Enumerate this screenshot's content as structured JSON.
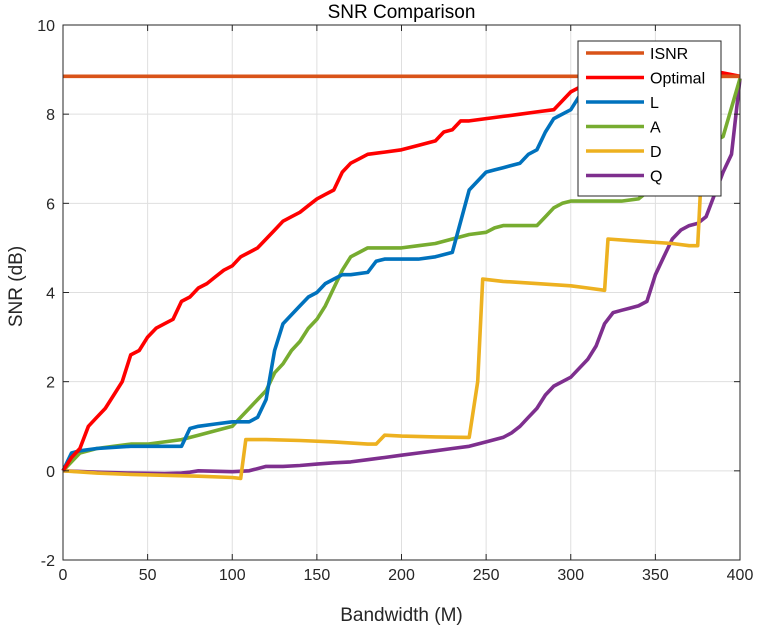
{
  "chart_data": {
    "type": "line",
    "title": "SNR Comparison",
    "xlabel": "Bandwidth (M)",
    "ylabel": "SNR (dB)",
    "xlim": [
      0,
      400
    ],
    "ylim": [
      -2,
      10
    ],
    "xticks": [
      0,
      50,
      100,
      150,
      200,
      250,
      300,
      350,
      400
    ],
    "yticks": [
      -2,
      0,
      2,
      4,
      6,
      8,
      10
    ],
    "grid": true,
    "legend_position": "top-right",
    "series": [
      {
        "name": "ISNR",
        "color": "#D95319",
        "points": [
          [
            0,
            8.85
          ],
          [
            400,
            8.85
          ]
        ]
      },
      {
        "name": "Optimal",
        "color": "#FF0000",
        "points": [
          [
            0,
            0
          ],
          [
            5,
            0.3
          ],
          [
            10,
            0.5
          ],
          [
            15,
            1.0
          ],
          [
            20,
            1.2
          ],
          [
            25,
            1.4
          ],
          [
            30,
            1.7
          ],
          [
            35,
            2.0
          ],
          [
            40,
            2.6
          ],
          [
            45,
            2.7
          ],
          [
            50,
            3.0
          ],
          [
            55,
            3.2
          ],
          [
            60,
            3.3
          ],
          [
            65,
            3.4
          ],
          [
            70,
            3.8
          ],
          [
            75,
            3.9
          ],
          [
            80,
            4.1
          ],
          [
            85,
            4.2
          ],
          [
            90,
            4.35
          ],
          [
            95,
            4.5
          ],
          [
            100,
            4.6
          ],
          [
            105,
            4.8
          ],
          [
            110,
            4.9
          ],
          [
            115,
            5.0
          ],
          [
            120,
            5.2
          ],
          [
            125,
            5.4
          ],
          [
            130,
            5.6
          ],
          [
            135,
            5.7
          ],
          [
            140,
            5.8
          ],
          [
            145,
            5.95
          ],
          [
            150,
            6.1
          ],
          [
            155,
            6.2
          ],
          [
            160,
            6.3
          ],
          [
            165,
            6.7
          ],
          [
            170,
            6.9
          ],
          [
            175,
            7.0
          ],
          [
            180,
            7.1
          ],
          [
            190,
            7.15
          ],
          [
            200,
            7.2
          ],
          [
            210,
            7.3
          ],
          [
            220,
            7.4
          ],
          [
            225,
            7.6
          ],
          [
            230,
            7.65
          ],
          [
            235,
            7.85
          ],
          [
            240,
            7.85
          ],
          [
            250,
            7.9
          ],
          [
            260,
            7.95
          ],
          [
            270,
            8.0
          ],
          [
            280,
            8.05
          ],
          [
            290,
            8.1
          ],
          [
            300,
            8.5
          ],
          [
            310,
            8.7
          ],
          [
            320,
            8.8
          ],
          [
            340,
            8.85
          ],
          [
            360,
            8.9
          ],
          [
            380,
            9.0
          ],
          [
            400,
            8.85
          ]
        ]
      },
      {
        "name": "L",
        "color": "#0072BD",
        "points": [
          [
            0,
            0
          ],
          [
            5,
            0.4
          ],
          [
            10,
            0.45
          ],
          [
            20,
            0.5
          ],
          [
            40,
            0.55
          ],
          [
            60,
            0.55
          ],
          [
            70,
            0.55
          ],
          [
            75,
            0.95
          ],
          [
            80,
            1.0
          ],
          [
            90,
            1.05
          ],
          [
            100,
            1.1
          ],
          [
            110,
            1.1
          ],
          [
            115,
            1.2
          ],
          [
            120,
            1.6
          ],
          [
            125,
            2.7
          ],
          [
            130,
            3.3
          ],
          [
            135,
            3.5
          ],
          [
            140,
            3.7
          ],
          [
            145,
            3.9
          ],
          [
            150,
            4.0
          ],
          [
            155,
            4.2
          ],
          [
            160,
            4.3
          ],
          [
            165,
            4.4
          ],
          [
            170,
            4.4
          ],
          [
            180,
            4.45
          ],
          [
            185,
            4.7
          ],
          [
            190,
            4.75
          ],
          [
            200,
            4.75
          ],
          [
            210,
            4.75
          ],
          [
            220,
            4.8
          ],
          [
            230,
            4.9
          ],
          [
            240,
            6.3
          ],
          [
            245,
            6.5
          ],
          [
            250,
            6.7
          ],
          [
            255,
            6.75
          ],
          [
            260,
            6.8
          ],
          [
            270,
            6.9
          ],
          [
            275,
            7.1
          ],
          [
            280,
            7.2
          ],
          [
            285,
            7.6
          ],
          [
            290,
            7.9
          ],
          [
            300,
            8.1
          ],
          [
            305,
            8.4
          ],
          [
            310,
            8.6
          ],
          [
            320,
            8.7
          ],
          [
            340,
            8.8
          ],
          [
            360,
            8.85
          ],
          [
            380,
            8.9
          ],
          [
            400,
            8.85
          ]
        ]
      },
      {
        "name": "A",
        "color": "#77AC30",
        "points": [
          [
            0,
            0
          ],
          [
            10,
            0.4
          ],
          [
            20,
            0.5
          ],
          [
            30,
            0.55
          ],
          [
            40,
            0.6
          ],
          [
            50,
            0.6
          ],
          [
            60,
            0.65
          ],
          [
            70,
            0.7
          ],
          [
            80,
            0.8
          ],
          [
            90,
            0.9
          ],
          [
            100,
            1.0
          ],
          [
            105,
            1.2
          ],
          [
            110,
            1.4
          ],
          [
            115,
            1.6
          ],
          [
            120,
            1.8
          ],
          [
            125,
            2.2
          ],
          [
            130,
            2.4
          ],
          [
            135,
            2.7
          ],
          [
            140,
            2.9
          ],
          [
            145,
            3.2
          ],
          [
            150,
            3.4
          ],
          [
            155,
            3.7
          ],
          [
            160,
            4.1
          ],
          [
            165,
            4.5
          ],
          [
            170,
            4.8
          ],
          [
            175,
            4.9
          ],
          [
            180,
            5.0
          ],
          [
            200,
            5.0
          ],
          [
            210,
            5.05
          ],
          [
            220,
            5.1
          ],
          [
            230,
            5.2
          ],
          [
            240,
            5.3
          ],
          [
            250,
            5.35
          ],
          [
            255,
            5.45
          ],
          [
            260,
            5.5
          ],
          [
            270,
            5.5
          ],
          [
            280,
            5.5
          ],
          [
            285,
            5.7
          ],
          [
            290,
            5.9
          ],
          [
            295,
            6.0
          ],
          [
            300,
            6.05
          ],
          [
            310,
            6.05
          ],
          [
            320,
            6.05
          ],
          [
            330,
            6.05
          ],
          [
            340,
            6.1
          ],
          [
            350,
            6.4
          ],
          [
            360,
            6.8
          ],
          [
            370,
            7.1
          ],
          [
            380,
            7.3
          ],
          [
            390,
            7.5
          ],
          [
            400,
            8.8
          ]
        ]
      },
      {
        "name": "D",
        "color": "#EDB120",
        "points": [
          [
            0,
            0
          ],
          [
            20,
            -0.05
          ],
          [
            40,
            -0.08
          ],
          [
            60,
            -0.1
          ],
          [
            80,
            -0.12
          ],
          [
            100,
            -0.15
          ],
          [
            105,
            -0.17
          ],
          [
            108,
            0.7
          ],
          [
            120,
            0.7
          ],
          [
            140,
            0.68
          ],
          [
            160,
            0.65
          ],
          [
            180,
            0.6
          ],
          [
            185,
            0.6
          ],
          [
            190,
            0.8
          ],
          [
            200,
            0.78
          ],
          [
            220,
            0.76
          ],
          [
            240,
            0.75
          ],
          [
            245,
            2.0
          ],
          [
            248,
            4.3
          ],
          [
            260,
            4.25
          ],
          [
            280,
            4.2
          ],
          [
            300,
            4.15
          ],
          [
            310,
            4.1
          ],
          [
            320,
            4.05
          ],
          [
            322,
            5.2
          ],
          [
            340,
            5.15
          ],
          [
            360,
            5.1
          ],
          [
            370,
            5.05
          ],
          [
            375,
            5.05
          ],
          [
            380,
            8.8
          ],
          [
            390,
            8.85
          ],
          [
            400,
            8.85
          ]
        ]
      },
      {
        "name": "Q",
        "color": "#7E2F8E",
        "points": [
          [
            0,
            0
          ],
          [
            20,
            -0.03
          ],
          [
            40,
            -0.05
          ],
          [
            60,
            -0.06
          ],
          [
            70,
            -0.05
          ],
          [
            75,
            -0.03
          ],
          [
            80,
            0.0
          ],
          [
            100,
            -0.02
          ],
          [
            110,
            0.0
          ],
          [
            120,
            0.1
          ],
          [
            130,
            0.1
          ],
          [
            140,
            0.12
          ],
          [
            150,
            0.15
          ],
          [
            160,
            0.18
          ],
          [
            170,
            0.2
          ],
          [
            180,
            0.25
          ],
          [
            190,
            0.3
          ],
          [
            200,
            0.35
          ],
          [
            210,
            0.4
          ],
          [
            220,
            0.45
          ],
          [
            230,
            0.5
          ],
          [
            240,
            0.55
          ],
          [
            250,
            0.65
          ],
          [
            260,
            0.75
          ],
          [
            265,
            0.85
          ],
          [
            270,
            1.0
          ],
          [
            275,
            1.2
          ],
          [
            280,
            1.4
          ],
          [
            285,
            1.7
          ],
          [
            290,
            1.9
          ],
          [
            300,
            2.1
          ],
          [
            305,
            2.3
          ],
          [
            310,
            2.5
          ],
          [
            315,
            2.8
          ],
          [
            320,
            3.3
          ],
          [
            325,
            3.55
          ],
          [
            330,
            3.6
          ],
          [
            335,
            3.65
          ],
          [
            340,
            3.7
          ],
          [
            345,
            3.8
          ],
          [
            350,
            4.4
          ],
          [
            355,
            4.8
          ],
          [
            360,
            5.2
          ],
          [
            365,
            5.4
          ],
          [
            370,
            5.5
          ],
          [
            375,
            5.55
          ],
          [
            380,
            5.7
          ],
          [
            385,
            6.2
          ],
          [
            390,
            6.7
          ],
          [
            395,
            7.1
          ],
          [
            400,
            8.8
          ]
        ]
      }
    ]
  }
}
